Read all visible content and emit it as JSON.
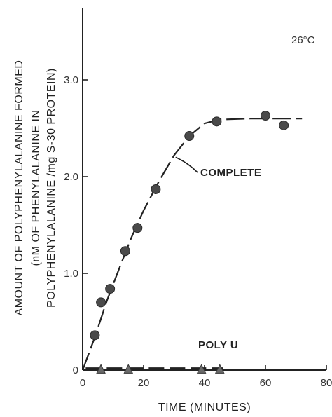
{
  "chart_data": {
    "type": "scatter",
    "xlabel": "TIME (MINUTES)",
    "ylabel_lines": [
      "AMOUNT OF POLYPHENYLALANINE FORMED",
      "(nM OF PHENYLALANINE IN",
      "POLYPHENYLALANINE /mg S-30 PROTEIN)"
    ],
    "xlim": [
      0,
      84
    ],
    "ylim": [
      0,
      3.7
    ],
    "xticks": [
      0,
      20,
      40,
      60,
      80
    ],
    "xtick_labels": [
      "0",
      "20",
      "40",
      "60",
      "80"
    ],
    "yticks": [
      0,
      1.0,
      2.0,
      3.0
    ],
    "ytick_labels": [
      "0",
      "1.0",
      "2.0",
      "3.0"
    ],
    "condition_label": "26°C",
    "grid": false,
    "series": [
      {
        "name": "COMPLETE",
        "marker": "circle",
        "x": [
          4,
          6,
          9,
          14,
          18,
          24,
          35,
          44,
          60,
          66
        ],
        "y": [
          0.36,
          0.7,
          0.84,
          1.23,
          1.47,
          1.87,
          2.42,
          2.57,
          2.63,
          2.53
        ]
      },
      {
        "name": "POLY U",
        "marker": "triangle",
        "x": [
          6,
          15,
          39,
          45
        ],
        "y": [
          0.0,
          0.0,
          0.0,
          0.0
        ]
      }
    ]
  }
}
